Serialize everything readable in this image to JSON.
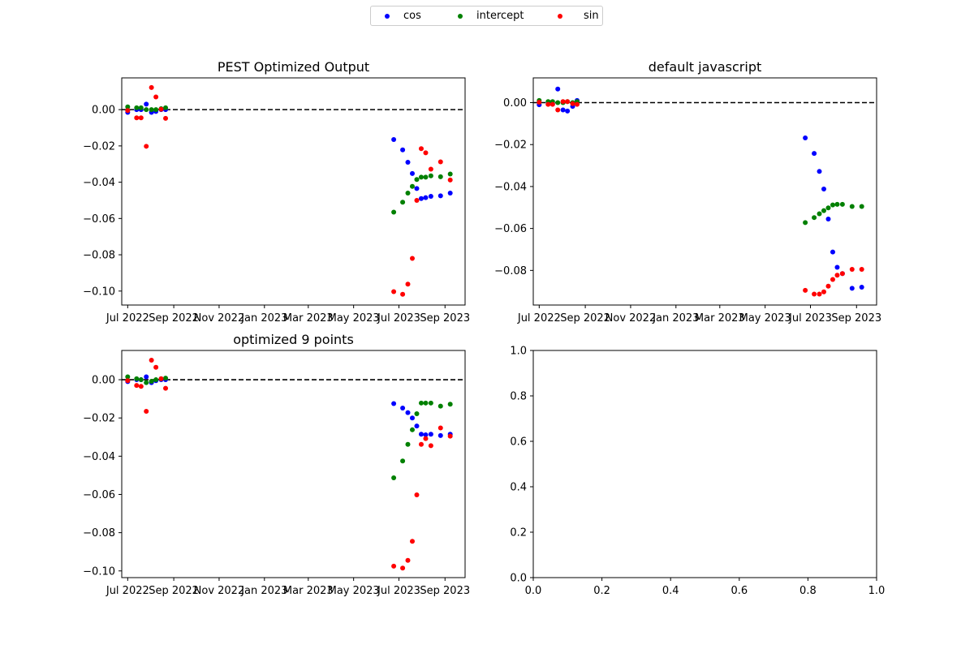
{
  "legend": [
    {
      "name": "cos",
      "color": "#0000ff"
    },
    {
      "name": "intercept",
      "color": "#008000"
    },
    {
      "name": "sin",
      "color": "#ff0000"
    }
  ],
  "colors": {
    "cos": "#0000ff",
    "intercept": "#008000",
    "sin": "#ff0000",
    "zero_line": "#000000"
  },
  "chart_data": [
    {
      "type": "scatter",
      "title": "PEST Optimized Output",
      "xaxis": "date",
      "xlim": [
        "2022-06-23",
        "2023-09-28"
      ],
      "ylim": [
        -0.1077,
        0.0175
      ],
      "xticks": [
        [
          "2022-07-01",
          "Jul 2022"
        ],
        [
          "2022-09-01",
          "Sep 2022"
        ],
        [
          "2022-11-01",
          "Nov 2022"
        ],
        [
          "2023-01-01",
          "Jan 2023"
        ],
        [
          "2023-03-01",
          "Mar 2023"
        ],
        [
          "2023-05-01",
          "May 2023"
        ],
        [
          "2023-07-01",
          "Jul 2023"
        ],
        [
          "2023-09-01",
          "Sep 2023"
        ]
      ],
      "yticks": [
        0.0,
        -0.02,
        -0.04,
        -0.06,
        -0.08,
        -0.1
      ],
      "ytick_labels": [
        "0.00",
        "−0.02",
        "−0.04",
        "−0.06",
        "−0.08",
        "−0.10"
      ],
      "hline": 0,
      "series": [
        {
          "name": "cos",
          "color": "#0000ff",
          "points": [
            [
              "2022-07-01",
              -0.0015
            ],
            [
              "2022-07-13",
              0.0
            ],
            [
              "2022-07-19",
              0.0
            ],
            [
              "2022-07-26",
              0.003
            ],
            [
              "2022-08-02",
              -0.0015
            ],
            [
              "2022-08-08",
              -0.001
            ],
            [
              "2022-08-15",
              0.0
            ],
            [
              "2022-08-21",
              0.0
            ]
          ]
        },
        {
          "name": "intercept",
          "color": "#008000",
          "points": [
            [
              "2022-07-01",
              0.0015
            ],
            [
              "2022-07-13",
              0.001
            ],
            [
              "2022-07-19",
              0.001
            ],
            [
              "2022-07-26",
              0.0
            ],
            [
              "2022-08-02",
              0.0
            ],
            [
              "2022-08-08",
              0.0
            ],
            [
              "2022-08-15",
              0.0005
            ],
            [
              "2022-08-21",
              0.001
            ]
          ]
        },
        {
          "name": "sin",
          "color": "#ff0000",
          "points": [
            [
              "2022-07-01",
              -0.0005
            ],
            [
              "2022-07-13",
              -0.0045
            ],
            [
              "2022-07-19",
              -0.0045
            ],
            [
              "2022-07-26",
              -0.0202
            ],
            [
              "2022-08-02",
              0.0122
            ],
            [
              "2022-08-08",
              0.007
            ],
            [
              "2022-08-15",
              0.0002
            ],
            [
              "2022-08-21",
              -0.0048
            ]
          ]
        },
        {
          "name": "cos",
          "color": "#0000ff",
          "points": [
            [
              "2023-06-24",
              -0.0165
            ],
            [
              "2023-07-06",
              -0.0222
            ],
            [
              "2023-07-13",
              -0.029
            ],
            [
              "2023-07-19",
              -0.0352
            ],
            [
              "2023-07-25",
              -0.0435
            ],
            [
              "2023-07-31",
              -0.049
            ],
            [
              "2023-08-06",
              -0.0485
            ],
            [
              "2023-08-13",
              -0.0478
            ],
            [
              "2023-08-26",
              -0.0475
            ],
            [
              "2023-09-08",
              -0.046
            ]
          ]
        },
        {
          "name": "intercept",
          "color": "#008000",
          "points": [
            [
              "2023-06-24",
              -0.0565
            ],
            [
              "2023-07-06",
              -0.051
            ],
            [
              "2023-07-13",
              -0.046
            ],
            [
              "2023-07-19",
              -0.0423
            ],
            [
              "2023-07-25",
              -0.0385
            ],
            [
              "2023-07-31",
              -0.0372
            ],
            [
              "2023-08-06",
              -0.0372
            ],
            [
              "2023-08-13",
              -0.0365
            ],
            [
              "2023-08-26",
              -0.037
            ],
            [
              "2023-09-08",
              -0.0355
            ]
          ]
        },
        {
          "name": "sin",
          "color": "#ff0000",
          "points": [
            [
              "2023-06-24",
              -0.1003
            ],
            [
              "2023-07-06",
              -0.1018
            ],
            [
              "2023-07-13",
              -0.0962
            ],
            [
              "2023-07-19",
              -0.082
            ],
            [
              "2023-07-25",
              -0.05
            ],
            [
              "2023-07-31",
              -0.0215
            ],
            [
              "2023-08-06",
              -0.0238
            ],
            [
              "2023-08-13",
              -0.0328
            ],
            [
              "2023-08-26",
              -0.0288
            ],
            [
              "2023-09-08",
              -0.0388
            ]
          ]
        }
      ]
    },
    {
      "type": "scatter",
      "title": "default javascript",
      "xaxis": "date",
      "xlim": [
        "2022-06-23",
        "2023-09-28"
      ],
      "ylim": [
        -0.0965,
        0.0118
      ],
      "xticks": [
        [
          "2022-07-01",
          "Jul 2022"
        ],
        [
          "2022-09-01",
          "Sep 2022"
        ],
        [
          "2022-11-01",
          "Nov 2022"
        ],
        [
          "2023-01-01",
          "Jan 2023"
        ],
        [
          "2023-03-01",
          "Mar 2023"
        ],
        [
          "2023-05-01",
          "May 2023"
        ],
        [
          "2023-07-01",
          "Jul 2023"
        ],
        [
          "2023-09-01",
          "Sep 2023"
        ]
      ],
      "yticks": [
        0.0,
        -0.02,
        -0.04,
        -0.06,
        -0.08
      ],
      "ytick_labels": [
        "0.00",
        "−0.02",
        "−0.04",
        "−0.06",
        "−0.08"
      ],
      "hline": 0,
      "series": [
        {
          "name": "cos",
          "color": "#0000ff",
          "points": [
            [
              "2022-07-01",
              -0.001
            ],
            [
              "2022-07-13",
              0.0
            ],
            [
              "2022-07-19",
              -0.0005
            ],
            [
              "2022-07-26",
              0.0065
            ],
            [
              "2022-08-02",
              -0.0035
            ],
            [
              "2022-08-08",
              -0.004
            ],
            [
              "2022-08-15",
              -0.0018
            ],
            [
              "2022-08-21",
              0.001
            ]
          ]
        },
        {
          "name": "intercept",
          "color": "#008000",
          "points": [
            [
              "2022-07-01",
              0.001
            ],
            [
              "2022-07-13",
              0.0005
            ],
            [
              "2022-07-19",
              0.0005
            ],
            [
              "2022-07-26",
              0.0
            ],
            [
              "2022-08-02",
              0.0
            ],
            [
              "2022-08-08",
              0.0005
            ],
            [
              "2022-08-15",
              0.0
            ],
            [
              "2022-08-21",
              0.0005
            ]
          ]
        },
        {
          "name": "sin",
          "color": "#ff0000",
          "points": [
            [
              "2022-07-01",
              0.0002
            ],
            [
              "2022-07-13",
              -0.0008
            ],
            [
              "2022-07-19",
              -0.0008
            ],
            [
              "2022-07-26",
              -0.0035
            ],
            [
              "2022-08-02",
              0.0005
            ],
            [
              "2022-08-08",
              0.0005
            ],
            [
              "2022-08-15",
              -0.0005
            ],
            [
              "2022-08-21",
              -0.0008
            ]
          ]
        },
        {
          "name": "cos",
          "color": "#0000ff",
          "points": [
            [
              "2023-06-24",
              -0.0168
            ],
            [
              "2023-07-06",
              -0.0242
            ],
            [
              "2023-07-13",
              -0.0328
            ],
            [
              "2023-07-19",
              -0.0412
            ],
            [
              "2023-07-25",
              -0.0555
            ],
            [
              "2023-07-31",
              -0.0712
            ],
            [
              "2023-08-06",
              -0.0785
            ],
            [
              "2023-08-13",
              -0.0815
            ],
            [
              "2023-08-26",
              -0.0885
            ],
            [
              "2023-09-08",
              -0.088
            ]
          ]
        },
        {
          "name": "intercept",
          "color": "#008000",
          "points": [
            [
              "2023-06-24",
              -0.0572
            ],
            [
              "2023-07-06",
              -0.0548
            ],
            [
              "2023-07-13",
              -0.053
            ],
            [
              "2023-07-19",
              -0.0515
            ],
            [
              "2023-07-25",
              -0.0502
            ],
            [
              "2023-07-31",
              -0.0488
            ],
            [
              "2023-08-06",
              -0.0485
            ],
            [
              "2023-08-13",
              -0.0485
            ],
            [
              "2023-08-26",
              -0.0495
            ],
            [
              "2023-09-08",
              -0.0495
            ]
          ]
        },
        {
          "name": "sin",
          "color": "#ff0000",
          "points": [
            [
              "2023-06-24",
              -0.0895
            ],
            [
              "2023-07-06",
              -0.0913
            ],
            [
              "2023-07-13",
              -0.0913
            ],
            [
              "2023-07-19",
              -0.0902
            ],
            [
              "2023-07-25",
              -0.0875
            ],
            [
              "2023-07-31",
              -0.0843
            ],
            [
              "2023-08-06",
              -0.0823
            ],
            [
              "2023-08-13",
              -0.0815
            ],
            [
              "2023-08-26",
              -0.0795
            ],
            [
              "2023-09-08",
              -0.0795
            ]
          ]
        }
      ]
    },
    {
      "type": "scatter",
      "title": "optimized 9 points",
      "xaxis": "date",
      "xlim": [
        "2022-06-23",
        "2023-09-28"
      ],
      "ylim": [
        -0.1035,
        0.0153
      ],
      "xticks": [
        [
          "2022-07-01",
          "Jul 2022"
        ],
        [
          "2022-09-01",
          "Sep 2022"
        ],
        [
          "2022-11-01",
          "Nov 2022"
        ],
        [
          "2023-01-01",
          "Jan 2023"
        ],
        [
          "2023-03-01",
          "Mar 2023"
        ],
        [
          "2023-05-01",
          "May 2023"
        ],
        [
          "2023-07-01",
          "Jul 2023"
        ],
        [
          "2023-09-01",
          "Sep 2023"
        ]
      ],
      "yticks": [
        0.0,
        -0.02,
        -0.04,
        -0.06,
        -0.08,
        -0.1
      ],
      "ytick_labels": [
        "0.00",
        "−0.02",
        "−0.04",
        "−0.06",
        "−0.08",
        "−0.10"
      ],
      "hline": 0,
      "series": [
        {
          "name": "cos",
          "color": "#0000ff",
          "points": [
            [
              "2022-07-01",
              -0.001
            ],
            [
              "2022-07-13",
              0.0
            ],
            [
              "2022-07-19",
              0.0
            ],
            [
              "2022-07-26",
              0.0015
            ],
            [
              "2022-08-02",
              -0.0015
            ],
            [
              "2022-08-08",
              -0.0005
            ],
            [
              "2022-08-15",
              0.0
            ],
            [
              "2022-08-21",
              0.0
            ]
          ]
        },
        {
          "name": "intercept",
          "color": "#008000",
          "points": [
            [
              "2022-07-01",
              0.0015
            ],
            [
              "2022-07-13",
              0.0005
            ],
            [
              "2022-07-19",
              0.0
            ],
            [
              "2022-07-26",
              -0.0015
            ],
            [
              "2022-08-02",
              -0.0008
            ],
            [
              "2022-08-08",
              0.0
            ],
            [
              "2022-08-15",
              0.0005
            ],
            [
              "2022-08-21",
              0.0008
            ]
          ]
        },
        {
          "name": "sin",
          "color": "#ff0000",
          "points": [
            [
              "2022-07-01",
              -0.0005
            ],
            [
              "2022-07-13",
              -0.003
            ],
            [
              "2022-07-19",
              -0.0035
            ],
            [
              "2022-07-26",
              -0.0165
            ],
            [
              "2022-08-02",
              0.0102
            ],
            [
              "2022-08-08",
              0.0065
            ],
            [
              "2022-08-15",
              0.0005
            ],
            [
              "2022-08-21",
              -0.0045
            ]
          ]
        },
        {
          "name": "cos",
          "color": "#0000ff",
          "points": [
            [
              "2023-06-24",
              -0.0125
            ],
            [
              "2023-07-06",
              -0.0148
            ],
            [
              "2023-07-13",
              -0.0172
            ],
            [
              "2023-07-19",
              -0.02
            ],
            [
              "2023-07-25",
              -0.0242
            ],
            [
              "2023-07-31",
              -0.0285
            ],
            [
              "2023-08-06",
              -0.0288
            ],
            [
              "2023-08-13",
              -0.0285
            ],
            [
              "2023-08-26",
              -0.0292
            ],
            [
              "2023-09-08",
              -0.0285
            ]
          ]
        },
        {
          "name": "intercept",
          "color": "#008000",
          "points": [
            [
              "2023-06-24",
              -0.0513
            ],
            [
              "2023-07-06",
              -0.0425
            ],
            [
              "2023-07-13",
              -0.0338
            ],
            [
              "2023-07-19",
              -0.0262
            ],
            [
              "2023-07-25",
              -0.0178
            ],
            [
              "2023-07-31",
              -0.0122
            ],
            [
              "2023-08-06",
              -0.0122
            ],
            [
              "2023-08-13",
              -0.0122
            ],
            [
              "2023-08-26",
              -0.0138
            ],
            [
              "2023-09-08",
              -0.0128
            ]
          ]
        },
        {
          "name": "sin",
          "color": "#ff0000",
          "points": [
            [
              "2023-06-24",
              -0.0975
            ],
            [
              "2023-07-06",
              -0.0985
            ],
            [
              "2023-07-13",
              -0.0945
            ],
            [
              "2023-07-19",
              -0.0845
            ],
            [
              "2023-07-25",
              -0.0602
            ],
            [
              "2023-07-31",
              -0.0338
            ],
            [
              "2023-08-06",
              -0.0308
            ],
            [
              "2023-08-13",
              -0.0345
            ],
            [
              "2023-08-26",
              -0.0252
            ],
            [
              "2023-09-08",
              -0.0295
            ]
          ]
        }
      ]
    },
    {
      "type": "scatter",
      "title": "",
      "xaxis": "linear",
      "xlim": [
        0,
        1
      ],
      "ylim": [
        0,
        1
      ],
      "xticks": [
        [
          0.0,
          "0.0"
        ],
        [
          0.2,
          "0.2"
        ],
        [
          0.4,
          "0.4"
        ],
        [
          0.6,
          "0.6"
        ],
        [
          0.8,
          "0.8"
        ],
        [
          1.0,
          "1.0"
        ]
      ],
      "yticks": [
        0.0,
        0.2,
        0.4,
        0.6,
        0.8,
        1.0
      ],
      "ytick_labels": [
        "0.0",
        "0.2",
        "0.4",
        "0.6",
        "0.8",
        "1.0"
      ],
      "series": []
    }
  ]
}
